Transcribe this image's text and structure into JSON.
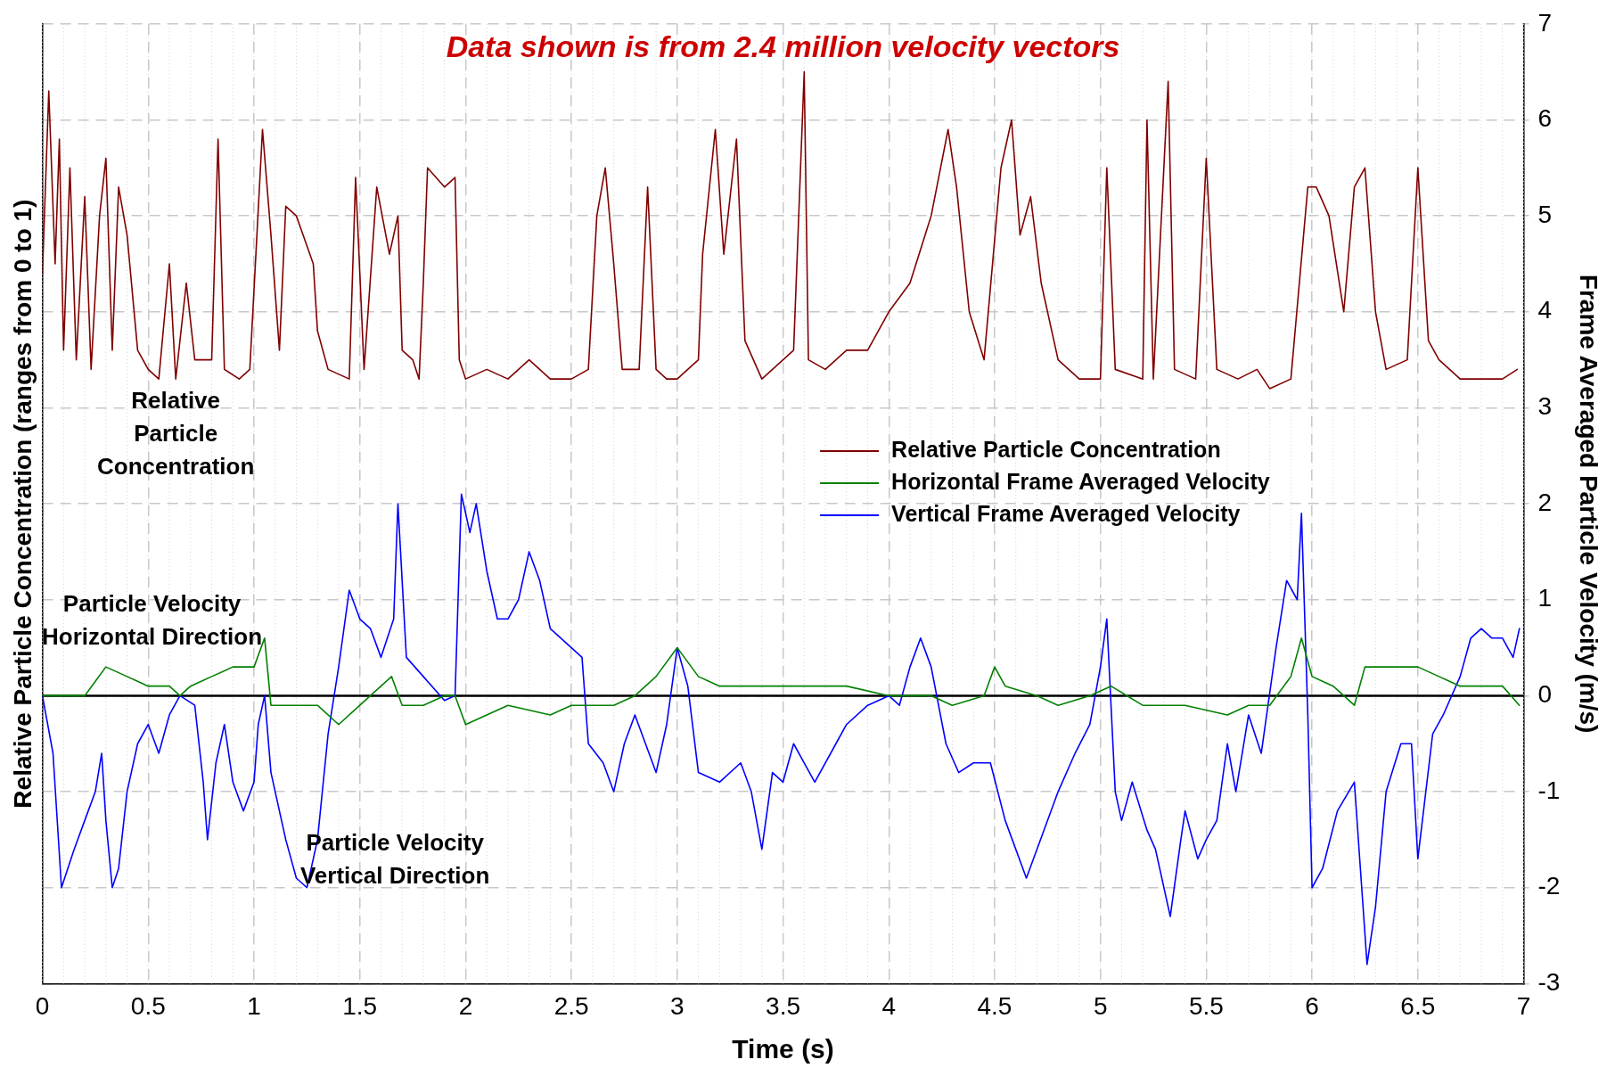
{
  "chart_data": {
    "type": "line",
    "title": "Data shown is from 2.4 million velocity vectors",
    "xlabel": "Time (s)",
    "ylabel": "Frame Averaged Particle Velocity (m/s)",
    "y2label": "Relative Particle Concentration (ranges from 0 to 1)",
    "xlim": [
      0,
      7
    ],
    "xticks": [
      0,
      0.5,
      1,
      1.5,
      2,
      2.5,
      3,
      3.5,
      4,
      4.5,
      5,
      5.5,
      6,
      6.5,
      7
    ],
    "ylim": [
      -3,
      7
    ],
    "yticks": [
      -3,
      -2,
      -1,
      0,
      1,
      2,
      3,
      4,
      5,
      6,
      7
    ],
    "grid": true,
    "legend": "right",
    "marker": "none",
    "line_style": "solid",
    "ref_lines": [
      {
        "axis": "y",
        "value": 0,
        "color": "#000000"
      }
    ],
    "annotations": [
      "Relative Particle Concentration",
      "Particle Velocity Horizontal Direction",
      "Particle Velocity Vertical Direction"
    ],
    "series": [
      {
        "name": "Relative Particle Concentration",
        "color": "#800000",
        "x": [
          0,
          0.03,
          0.06,
          0.08,
          0.1,
          0.13,
          0.16,
          0.2,
          0.23,
          0.27,
          0.3,
          0.33,
          0.36,
          0.4,
          0.45,
          0.5,
          0.55,
          0.6,
          0.63,
          0.68,
          0.72,
          0.8,
          0.83,
          0.86,
          0.93,
          0.98,
          1.04,
          1.08,
          1.12,
          1.15,
          1.2,
          1.28,
          1.3,
          1.35,
          1.45,
          1.48,
          1.52,
          1.58,
          1.64,
          1.68,
          1.7,
          1.75,
          1.78,
          1.8,
          1.82,
          1.9,
          1.95,
          1.97,
          2.0,
          2.1,
          2.2,
          2.3,
          2.4,
          2.5,
          2.58,
          2.62,
          2.66,
          2.7,
          2.74,
          2.82,
          2.86,
          2.9,
          2.95,
          3.0,
          3.1,
          3.12,
          3.18,
          3.22,
          3.28,
          3.32,
          3.4,
          3.5,
          3.55,
          3.6,
          3.62,
          3.7,
          3.8,
          3.9,
          4.0,
          4.1,
          4.2,
          4.28,
          4.32,
          4.38,
          4.45,
          4.53,
          4.58,
          4.62,
          4.67,
          4.72,
          4.8,
          4.9,
          5.0,
          5.03,
          5.07,
          5.2,
          5.22,
          5.25,
          5.32,
          5.35,
          5.45,
          5.5,
          5.55,
          5.65,
          5.74,
          5.8,
          5.9,
          5.98,
          6.02,
          6.08,
          6.15,
          6.2,
          6.25,
          6.3,
          6.35,
          6.45,
          6.5,
          6.55,
          6.6,
          6.7,
          6.8,
          6.9,
          6.97
        ],
        "values": [
          4.4,
          6.3,
          4.5,
          5.8,
          3.6,
          5.5,
          3.5,
          5.2,
          3.4,
          5.0,
          5.6,
          3.6,
          5.3,
          4.8,
          3.6,
          3.4,
          3.3,
          4.5,
          3.3,
          4.3,
          3.5,
          3.5,
          5.8,
          3.4,
          3.3,
          3.4,
          5.9,
          4.8,
          3.6,
          5.1,
          5.0,
          4.5,
          3.8,
          3.4,
          3.3,
          5.4,
          3.4,
          5.3,
          4.6,
          5.0,
          3.6,
          3.5,
          3.3,
          4.3,
          5.5,
          5.3,
          5.4,
          3.5,
          3.3,
          3.4,
          3.3,
          3.5,
          3.3,
          3.3,
          3.4,
          5.0,
          5.5,
          4.5,
          3.4,
          3.4,
          5.3,
          3.4,
          3.3,
          3.3,
          3.5,
          4.6,
          5.9,
          4.6,
          5.8,
          3.7,
          3.3,
          3.5,
          3.6,
          6.5,
          3.5,
          3.4,
          3.6,
          3.6,
          4.0,
          4.3,
          5.0,
          5.9,
          5.3,
          4.0,
          3.5,
          5.5,
          6.0,
          4.8,
          5.2,
          4.3,
          3.5,
          3.3,
          3.3,
          5.5,
          3.4,
          3.3,
          6.0,
          3.3,
          6.4,
          3.4,
          3.3,
          5.6,
          3.4,
          3.3,
          3.4,
          3.2,
          3.3,
          5.3,
          5.3,
          5.0,
          4.0,
          5.3,
          5.5,
          4.0,
          3.4,
          3.5,
          5.5,
          3.7,
          3.5,
          3.3,
          3.3,
          3.3,
          3.4
        ]
      },
      {
        "name": "Horizontal Frame Averaged Velocity",
        "color": "#008000",
        "x": [
          0,
          0.2,
          0.3,
          0.4,
          0.5,
          0.6,
          0.65,
          0.7,
          0.8,
          0.9,
          1.0,
          1.05,
          1.08,
          1.2,
          1.3,
          1.4,
          1.5,
          1.6,
          1.65,
          1.7,
          1.8,
          1.9,
          1.95,
          2.0,
          2.2,
          2.4,
          2.5,
          2.6,
          2.7,
          2.8,
          2.9,
          3.0,
          3.1,
          3.2,
          3.4,
          3.6,
          3.8,
          4.0,
          4.1,
          4.2,
          4.3,
          4.45,
          4.5,
          4.55,
          4.7,
          4.8,
          4.95,
          5.05,
          5.2,
          5.4,
          5.6,
          5.7,
          5.8,
          5.9,
          5.95,
          6.0,
          6.1,
          6.2,
          6.25,
          6.4,
          6.5,
          6.6,
          6.7,
          6.8,
          6.9,
          6.98
        ],
        "values": [
          0,
          0,
          0.3,
          0.2,
          0.1,
          0.1,
          0,
          0.1,
          0.2,
          0.3,
          0.3,
          0.6,
          -0.1,
          -0.1,
          -0.1,
          -0.3,
          -0.1,
          0.1,
          0.2,
          -0.1,
          -0.1,
          0,
          0,
          -0.3,
          -0.1,
          -0.2,
          -0.1,
          -0.1,
          -0.1,
          0,
          0.2,
          0.5,
          0.2,
          0.1,
          0.1,
          0.1,
          0.1,
          0,
          0,
          0,
          -0.1,
          0,
          0.3,
          0.1,
          0,
          -0.1,
          0,
          0.1,
          -0.1,
          -0.1,
          -0.2,
          -0.1,
          -0.1,
          0.2,
          0.6,
          0.2,
          0.1,
          -0.1,
          0.3,
          0.3,
          0.3,
          0.2,
          0.1,
          0.1,
          0.1,
          -0.1
        ]
      },
      {
        "name": "Vertical Frame Averaged Velocity",
        "color": "#0000ff",
        "x": [
          0,
          0.05,
          0.09,
          0.15,
          0.2,
          0.25,
          0.28,
          0.3,
          0.33,
          0.36,
          0.4,
          0.45,
          0.5,
          0.55,
          0.6,
          0.65,
          0.72,
          0.76,
          0.78,
          0.82,
          0.86,
          0.9,
          0.95,
          1.0,
          1.02,
          1.05,
          1.08,
          1.15,
          1.2,
          1.25,
          1.3,
          1.35,
          1.4,
          1.45,
          1.5,
          1.55,
          1.6,
          1.66,
          1.68,
          1.72,
          1.8,
          1.9,
          1.95,
          1.98,
          2.02,
          2.05,
          2.1,
          2.15,
          2.2,
          2.25,
          2.3,
          2.35,
          2.4,
          2.45,
          2.5,
          2.55,
          2.58,
          2.65,
          2.7,
          2.75,
          2.8,
          2.85,
          2.9,
          2.95,
          3.0,
          3.05,
          3.1,
          3.2,
          3.3,
          3.35,
          3.4,
          3.45,
          3.5,
          3.55,
          3.6,
          3.65,
          3.75,
          3.8,
          3.9,
          4.0,
          4.05,
          4.1,
          4.15,
          4.2,
          4.27,
          4.33,
          4.4,
          4.48,
          4.55,
          4.65,
          4.7,
          4.8,
          4.88,
          4.95,
          5.0,
          5.03,
          5.07,
          5.1,
          5.15,
          5.22,
          5.26,
          5.33,
          5.38,
          5.4,
          5.46,
          5.5,
          5.55,
          5.6,
          5.64,
          5.7,
          5.76,
          5.83,
          5.88,
          5.93,
          5.95,
          5.98,
          6.0,
          6.05,
          6.12,
          6.2,
          6.26,
          6.3,
          6.35,
          6.42,
          6.47,
          6.5,
          6.57,
          6.62,
          6.7,
          6.75,
          6.8,
          6.85,
          6.9,
          6.95,
          6.98
        ],
        "values": [
          0,
          -0.6,
          -2.0,
          -1.6,
          -1.3,
          -1.0,
          -0.6,
          -1.3,
          -2.0,
          -1.8,
          -1.0,
          -0.5,
          -0.3,
          -0.6,
          -0.2,
          0,
          -0.1,
          -0.9,
          -1.5,
          -0.7,
          -0.3,
          -0.9,
          -1.2,
          -0.9,
          -0.3,
          0,
          -0.8,
          -1.5,
          -1.9,
          -2.0,
          -1.5,
          -0.4,
          0.3,
          1.1,
          0.8,
          0.7,
          0.4,
          0.8,
          2.0,
          0.4,
          0.2,
          -0.05,
          0,
          2.1,
          1.7,
          2.0,
          1.3,
          0.8,
          0.8,
          1.0,
          1.5,
          1.2,
          0.7,
          0.6,
          0.5,
          0.4,
          -0.5,
          -0.7,
          -1.0,
          -0.5,
          -0.2,
          -0.5,
          -0.8,
          -0.3,
          0.5,
          0.1,
          -0.8,
          -0.9,
          -0.7,
          -1.0,
          -1.6,
          -0.8,
          -0.9,
          -0.5,
          -0.7,
          -0.9,
          -0.5,
          -0.3,
          -0.1,
          0,
          -0.1,
          0.3,
          0.6,
          0.3,
          -0.5,
          -0.8,
          -0.7,
          -0.7,
          -1.3,
          -1.9,
          -1.6,
          -1.0,
          -0.6,
          -0.3,
          0.3,
          0.8,
          -1.0,
          -1.3,
          -0.9,
          -1.4,
          -1.6,
          -2.3,
          -1.5,
          -1.2,
          -1.7,
          -1.5,
          -1.3,
          -0.5,
          -1.0,
          -0.2,
          -0.6,
          0.5,
          1.2,
          1.0,
          1.9,
          -0.2,
          -2.0,
          -1.8,
          -1.2,
          -0.9,
          -2.8,
          -2.2,
          -1.0,
          -0.5,
          -0.5,
          -1.7,
          -0.4,
          -0.2,
          0.2,
          0.6,
          0.7,
          0.6,
          0.6,
          0.4,
          0.7
        ]
      }
    ]
  }
}
